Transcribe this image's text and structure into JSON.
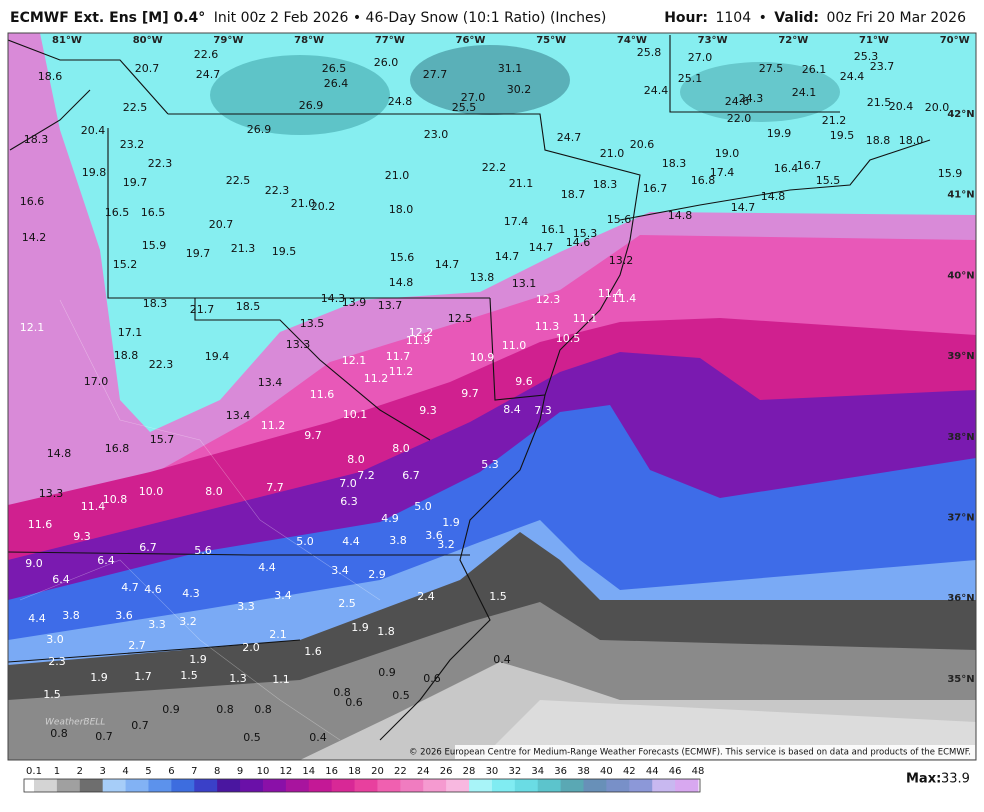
{
  "header": {
    "title": "ECMWF Ext. Ens [M] 0.4°",
    "subtitle": "Init 00z 2 Feb 2026 • 46-Day Snow (10:1 Ratio) (Inches)",
    "hour_label": "Hour:",
    "hour": "1104",
    "separator": "•",
    "valid_label": "Valid:",
    "valid": "00z Fri 20 Mar 2026"
  },
  "map": {
    "longitudes": [
      "81°W",
      "80°W",
      "79°W",
      "78°W",
      "77°W",
      "76°W",
      "75°W",
      "74°W",
      "73°W",
      "72°W",
      "71°W",
      "70°W"
    ],
    "latitudes": [
      "42°N",
      "41°N",
      "40°N",
      "39°N",
      "38°N",
      "37°N",
      "36°N",
      "35°N"
    ],
    "labels": [
      "22.6",
      "20.7",
      "24.7",
      "26.5",
      "26.4",
      "26.0",
      "27.7",
      "31.1",
      "25.8",
      "27.0",
      "25.3",
      "23.7",
      "18.6",
      "27.5",
      "26.1",
      "24.4",
      "25.1",
      "30.2",
      "27.0",
      "24.4",
      "24.3",
      "24.6",
      "24.1",
      "21.5",
      "20.4",
      "20.0",
      "22.5",
      "26.9",
      "24.8",
      "25.5",
      "22.0",
      "21.2",
      "26.9",
      "23.0",
      "24.7",
      "19.9",
      "20.4",
      "18.3",
      "23.2",
      "20.6",
      "19.5",
      "18.8",
      "18.0",
      "21.0",
      "19.0",
      "22.3",
      "22.2",
      "18.3",
      "19.8",
      "21.0",
      "17.4",
      "16.4",
      "16.7",
      "15.9",
      "19.7",
      "22.5",
      "21.1",
      "18.3",
      "16.8",
      "15.5",
      "22.3",
      "18.7",
      "16.7",
      "14.8",
      "16.6",
      "21.0",
      "20.2",
      "18.0",
      "14.7",
      "16.5",
      "16.5",
      "14.8",
      "15.6",
      "17.4",
      "20.7",
      "16.1",
      "15.3",
      "14.2",
      "15.9",
      "21.3",
      "19.5",
      "14.7",
      "14.6",
      "19.7",
      "15.6",
      "14.7",
      "15.2",
      "14.7",
      "13.2",
      "13.8",
      "14.8",
      "13.1",
      "11.4",
      "11.4",
      "14.3",
      "13.9",
      "12.3",
      "18.3",
      "21.7",
      "18.5",
      "13.7",
      "11.1",
      "12.5",
      "13.5",
      "11.3",
      "12.1",
      "17.1",
      "12.2",
      "11.9",
      "10.5",
      "13.3",
      "11.0",
      "18.8",
      "19.4",
      "12.1",
      "11.7",
      "10.9",
      "22.3",
      "11.2",
      "11.2",
      "9.6",
      "17.0",
      "13.4",
      "9.7",
      "11.6",
      "9.3",
      "8.4",
      "7.3",
      "10.1",
      "13.4",
      "11.2",
      "9.7",
      "15.7",
      "8.0",
      "16.8",
      "14.8",
      "8.0",
      "5.3",
      "7.2",
      "6.7",
      "7.0",
      "7.7",
      "8.0",
      "10.0",
      "13.3",
      "10.8",
      "11.4",
      "6.3",
      "5.0",
      "4.9",
      "11.6",
      "1.9",
      "3.6",
      "9.3",
      "5.0",
      "4.4",
      "3.8",
      "3.2",
      "6.7",
      "5.6",
      "6.4",
      "9.0",
      "4.4",
      "3.4",
      "2.9",
      "6.4",
      "4.7",
      "4.6",
      "4.3",
      "3.4",
      "1.5",
      "2.4",
      "3.3",
      "2.5",
      "4.4",
      "3.8",
      "3.6",
      "3.3",
      "3.2",
      "1.9",
      "1.8",
      "2.1",
      "3.0",
      "2.7",
      "2.0",
      "1.6",
      "1.9",
      "0.4",
      "2.3",
      "1.9",
      "1.7",
      "1.5",
      "1.3",
      "1.1",
      "0.9",
      "0.6",
      "1.5",
      "0.8",
      "0.6",
      "0.5",
      "0.9",
      "0.8",
      "0.8",
      "0.7",
      "0.8",
      "0.7",
      "0.5",
      "0.4"
    ],
    "credit": "© 2026 European Centre for Medium-Range Weather Forecasts (ECMWF). This service is based on data and products of the ECMWF.",
    "logo": "WeatherBELL"
  },
  "legend": {
    "ticks": [
      "0.1",
      "1",
      "2",
      "3",
      "4",
      "5",
      "6",
      "7",
      "8",
      "9",
      "10",
      "12",
      "14",
      "16",
      "18",
      "20",
      "22",
      "24",
      "26",
      "28",
      "30",
      "32",
      "34",
      "36",
      "38",
      "40",
      "42",
      "44",
      "46",
      "48"
    ],
    "max_label": "Max:",
    "max": "33.9"
  }
}
